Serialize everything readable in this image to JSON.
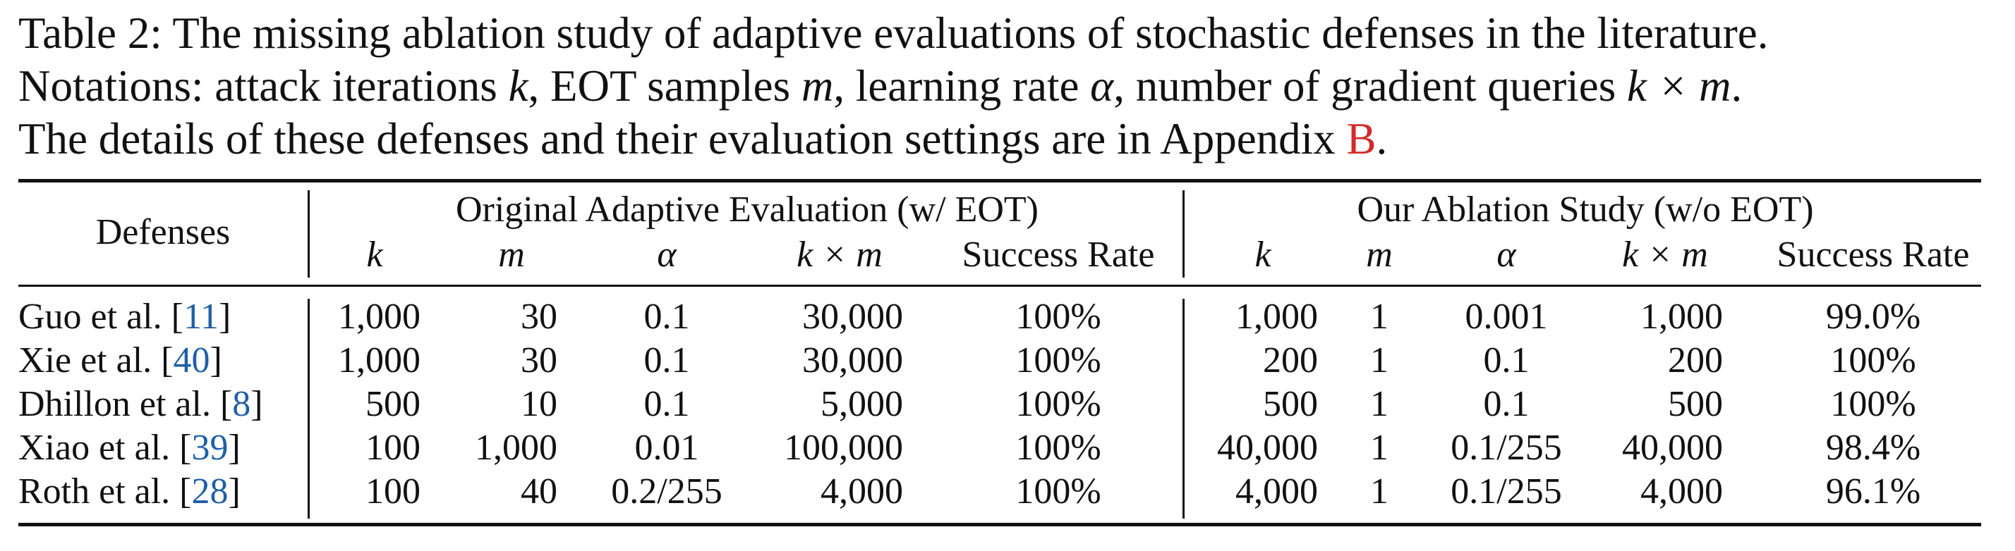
{
  "caption": {
    "line1": "Table 2: The missing ablation study of adaptive evaluations of stochastic defenses in the literature.",
    "line2_prefix": "Notations: attack iterations ",
    "line2_k": "k",
    "line2_mid1": ", EOT samples ",
    "line2_m": "m",
    "line2_mid2": ", learning rate ",
    "line2_alpha": "α",
    "line2_mid3": ", number of gradient queries ",
    "line2_kxm": "k × m",
    "line2_end": ".",
    "line3_prefix": "The details of these defenses and their evaluation settings are in Appendix ",
    "line3_ref": "B",
    "line3_end": "."
  },
  "table": {
    "defenses_header": "Defenses",
    "group1_header": "Original Adaptive Evaluation (w/ EOT)",
    "group2_header": "Our Ablation Study (w/o EOT)",
    "subheaders": {
      "k": "k",
      "m": "m",
      "alpha": "α",
      "kxm": "k × m",
      "success": "Success Rate"
    },
    "rows": [
      {
        "name": "Guo et al. [",
        "ref": "11",
        "close": "]",
        "orig": {
          "k": "1,000",
          "m": "30",
          "alpha": "0.1",
          "kxm": "30,000",
          "success": "100%"
        },
        "ours": {
          "k": "1,000",
          "m": "1",
          "alpha": "0.001",
          "kxm": "1,000",
          "success": "99.0%"
        }
      },
      {
        "name": "Xie et al. [",
        "ref": "40",
        "close": "]",
        "orig": {
          "k": "1,000",
          "m": "30",
          "alpha": "0.1",
          "kxm": "30,000",
          "success": "100%"
        },
        "ours": {
          "k": "200",
          "m": "1",
          "alpha": "0.1",
          "kxm": "200",
          "success": "100%"
        }
      },
      {
        "name": "Dhillon et al. [",
        "ref": "8",
        "close": "]",
        "orig": {
          "k": "500",
          "m": "10",
          "alpha": "0.1",
          "kxm": "5,000",
          "success": "100%"
        },
        "ours": {
          "k": "500",
          "m": "1",
          "alpha": "0.1",
          "kxm": "500",
          "success": "100%"
        }
      },
      {
        "name": "Xiao et al. [",
        "ref": "39",
        "close": "]",
        "orig": {
          "k": "100",
          "m": "1,000",
          "alpha": "0.01",
          "kxm": "100,000",
          "success": "100%"
        },
        "ours": {
          "k": "40,000",
          "m": "1",
          "alpha": "0.1/255",
          "kxm": "40,000",
          "success": "98.4%"
        }
      },
      {
        "name": "Roth et al. [",
        "ref": "28",
        "close": "]",
        "orig": {
          "k": "100",
          "m": "40",
          "alpha": "0.2/255",
          "kxm": "4,000",
          "success": "100%"
        },
        "ours": {
          "k": "4,000",
          "m": "1",
          "alpha": "0.1/255",
          "kxm": "4,000",
          "success": "96.1%"
        }
      }
    ]
  },
  "colors": {
    "text": "#111111",
    "appendix_link": "#d42a2a",
    "citation_link": "#1f5fa8"
  }
}
